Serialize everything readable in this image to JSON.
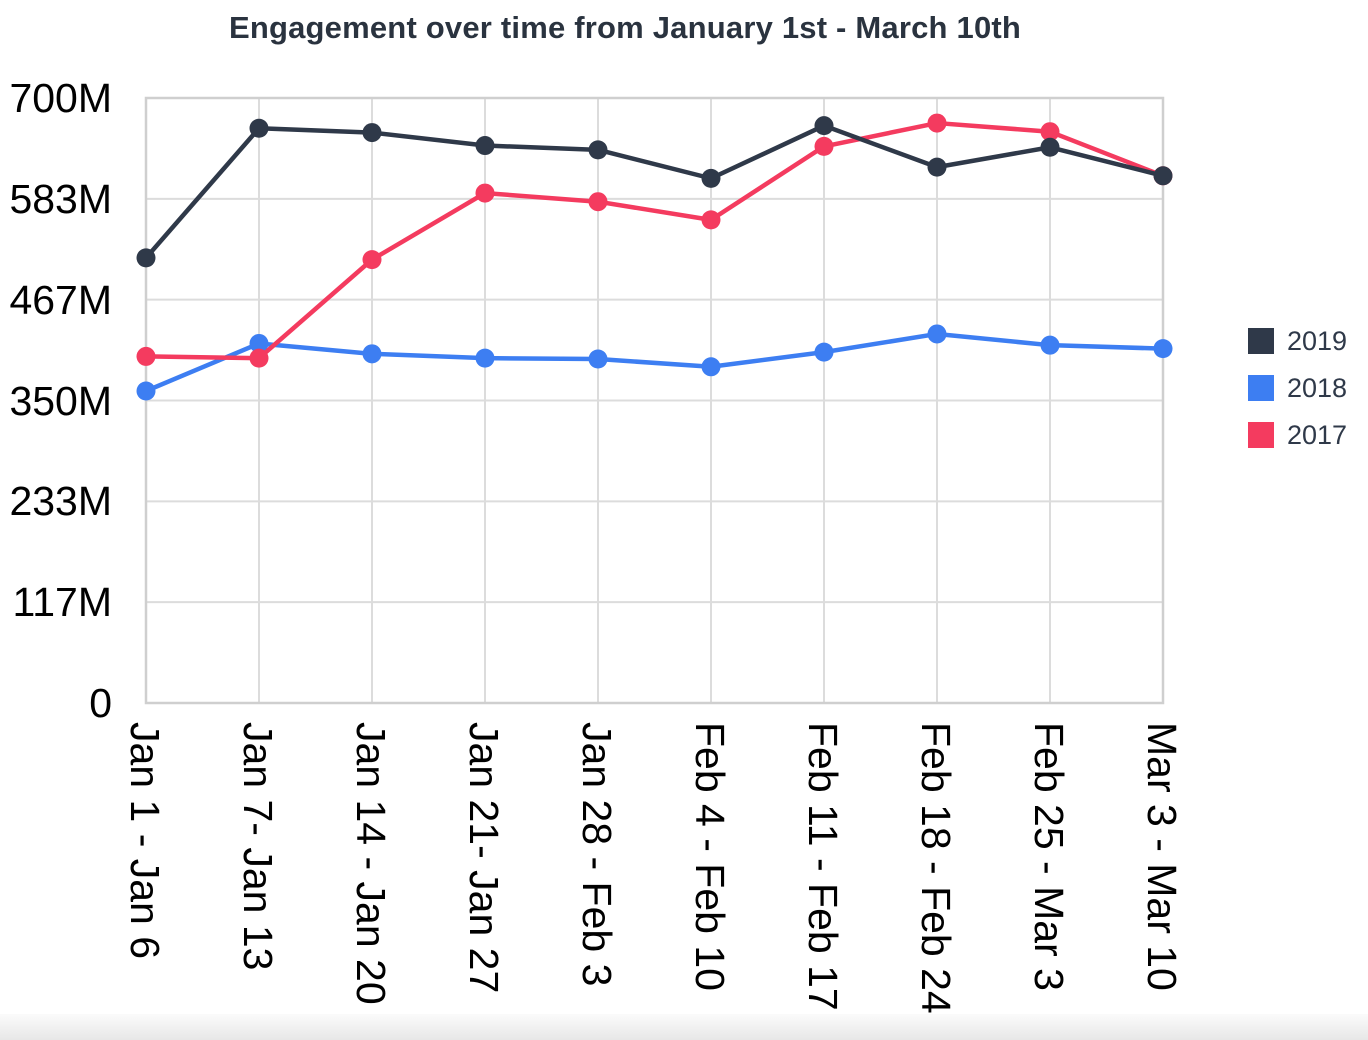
{
  "title": "Engagement over time from January 1st - March 10th",
  "chart_data": {
    "type": "line",
    "title": "Engagement over time from January 1st - March 10th",
    "unit": "millions (M)",
    "categories": [
      "Jan 1 - Jan 6",
      "Jan 7- Jan 13",
      "Jan 14 - Jan 20",
      "Jan 21- Jan 27",
      "Jan 28 - Feb 3",
      "Feb 4 - Feb 10",
      "Feb 11 - Feb 17",
      "Feb 18 - Feb 24",
      "Feb 25 - Mar 3",
      "Mar 3 - Mar 10"
    ],
    "series": [
      {
        "name": "2019",
        "color": "#2F3949",
        "values": [
          515,
          665,
          660,
          645,
          640,
          607,
          668,
          620,
          643,
          610
        ]
      },
      {
        "name": "2018",
        "color": "#3D7EF2",
        "values": [
          361,
          416,
          404,
          399,
          398,
          389,
          406,
          427,
          414,
          410
        ]
      },
      {
        "name": "2017",
        "color": "#F43B5F",
        "values": [
          401,
          399,
          513,
          590,
          580,
          559,
          644,
          671,
          661,
          610
        ]
      }
    ],
    "draw_order": [
      1,
      2,
      0
    ],
    "xlabel": "",
    "ylabel": "",
    "ylim": [
      0,
      700
    ],
    "ytick_labels": [
      "700M",
      "583M",
      "467M",
      "350M",
      "233M",
      "117M",
      "0"
    ],
    "grid": true,
    "legend_position": "right"
  },
  "styles": {
    "grid_color": "#DCDCDC",
    "border_color": "#CFCFCF",
    "tick_label_color": "#000000",
    "title_color": "#2A333F",
    "legend_text_color": "#2F3949",
    "background": "#FFFFFF"
  }
}
